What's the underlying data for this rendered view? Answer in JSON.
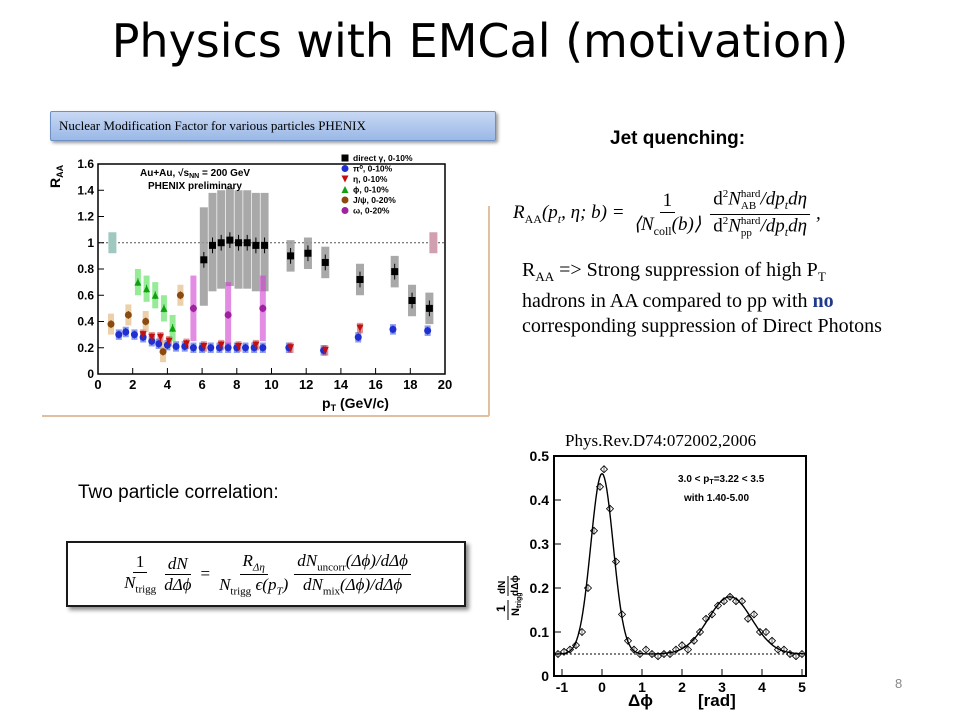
{
  "slide": {
    "title": "Physics with EMCal (motivation)",
    "page_number": "8"
  },
  "left_panel": {
    "banner": "Nuclear Modification Factor for various particles  PHENIX",
    "two_particle_label": "Two particle correlation:"
  },
  "right_panel": {
    "jet_quenching_label": "Jet quenching:",
    "raa_formula": {
      "lhs": "R",
      "lhs_sub": "AA",
      "lhs_args": "(p",
      "lhs_args_sub": "t",
      "lhs_args_rest": ", η; b) =",
      "one": "1",
      "ncoll": "⟨N",
      "ncoll_sub": "coll",
      "ncoll_rest": "(b)⟩",
      "num_d2": "d",
      "num_sup": "2",
      "num_N": "N",
      "num_N_sup": "hard",
      "num_N_sub": "AB",
      "num_rest": "/dp",
      "num_rest_sub": "t",
      "num_rest2": "dη",
      "den_N_sup": "hard",
      "den_N_sub": "pp",
      "trailing": ","
    },
    "description": {
      "p1": "R",
      "p1_sub": "AA",
      "p2": " => Strong suppression of high P",
      "p2_sub": "T",
      "p3": " hadrons in AA compared to pp with ",
      "no": "no",
      "p4": " corresponding suppression of Direct Photons"
    },
    "reference": "Phys.Rev.D74:072002,2006"
  },
  "corr_formula": {
    "one": "1",
    "dN": "dN",
    "N": "N",
    "trigg": "trigg",
    "ddphi": "dΔϕ",
    "R": "R",
    "R_sub": "Δη",
    "eps": " ϵ(p",
    "eps_sub": "T",
    "eps_rest": ")",
    "dN_uncorr": "dN",
    "uncorr_sub": "uncorr",
    "uncorr_rest": "(Δϕ)/dΔϕ",
    "dN_mix": "dN",
    "mix_sub": "mix",
    "mix_rest": "(Δϕ)/dΔϕ",
    "eq": "="
  },
  "raa_chart_data": {
    "type": "scatter",
    "title": "",
    "annotation": [
      "Au+Au, √s",
      "NN",
      " = 200 GeV",
      "PHENIX preliminary"
    ],
    "xlabel": "p",
    "xlabel_sub": "T",
    "xlabel_rest": " (GeV/c)",
    "ylabel": "R",
    "ylabel_sub": "AA",
    "xlim": [
      0,
      20
    ],
    "ylim": [
      0,
      1.6
    ],
    "x_ticks": [
      "0",
      "2",
      "4",
      "6",
      "8",
      "10",
      "12",
      "14",
      "16",
      "18",
      "20"
    ],
    "y_ticks": [
      "0",
      "0.2",
      "0.4",
      "0.6",
      "0.8",
      "1",
      "1.2",
      "1.4",
      "1.6"
    ],
    "y_tick_values": [
      0,
      0.2,
      0.4,
      0.6,
      0.8,
      1,
      1.2,
      1.4,
      1.6
    ],
    "reference_line": 1,
    "legend_position": "top-right",
    "series": [
      {
        "name": "direct γ, 0-10%",
        "marker": "square",
        "color": "#000000",
        "band_color": "#9a9a9a",
        "points": [
          [
            6.1,
            0.87
          ],
          [
            6.6,
            0.98
          ],
          [
            7.1,
            1.0
          ],
          [
            7.6,
            1.02
          ],
          [
            8.1,
            1.0
          ],
          [
            8.6,
            1.0
          ],
          [
            9.1,
            0.98
          ],
          [
            9.6,
            0.98
          ],
          [
            11.1,
            0.9
          ],
          [
            12.1,
            0.92
          ],
          [
            13.1,
            0.85
          ],
          [
            15.1,
            0.72
          ],
          [
            17.1,
            0.78
          ],
          [
            18.1,
            0.56
          ],
          [
            19.1,
            0.5
          ]
        ]
      },
      {
        "name": "π⁰, 0-10%",
        "marker": "circle",
        "color": "#1f2fd0",
        "band_color": "#3d5be0",
        "points": [
          [
            1.2,
            0.3
          ],
          [
            1.6,
            0.32
          ],
          [
            2.1,
            0.3
          ],
          [
            2.6,
            0.28
          ],
          [
            3.1,
            0.25
          ],
          [
            3.5,
            0.23
          ],
          [
            4.0,
            0.22
          ],
          [
            4.5,
            0.21
          ],
          [
            5.0,
            0.21
          ],
          [
            5.5,
            0.2
          ],
          [
            6.0,
            0.2
          ],
          [
            6.5,
            0.2
          ],
          [
            7.0,
            0.2
          ],
          [
            7.5,
            0.2
          ],
          [
            8.0,
            0.2
          ],
          [
            8.5,
            0.2
          ],
          [
            9.0,
            0.2
          ],
          [
            9.5,
            0.2
          ],
          [
            11.0,
            0.2
          ],
          [
            13.0,
            0.18
          ],
          [
            15.0,
            0.28
          ],
          [
            17.0,
            0.34
          ],
          [
            19.0,
            0.33
          ]
        ]
      },
      {
        "name": "η, 0-10%",
        "marker": "triangle-down",
        "color": "#c01010",
        "band_color": "#d05050",
        "points": [
          [
            2.6,
            0.3
          ],
          [
            3.1,
            0.28
          ],
          [
            3.6,
            0.28
          ],
          [
            4.1,
            0.25
          ],
          [
            5.1,
            0.23
          ],
          [
            6.1,
            0.21
          ],
          [
            7.1,
            0.22
          ],
          [
            8.1,
            0.21
          ],
          [
            9.1,
            0.22
          ],
          [
            11.1,
            0.2
          ],
          [
            13.1,
            0.18
          ],
          [
            15.1,
            0.35
          ]
        ]
      },
      {
        "name": "ϕ, 0-10%",
        "marker": "triangle-up",
        "color": "#10a010",
        "band_color": "#50e050",
        "points": [
          [
            2.3,
            0.7
          ],
          [
            2.8,
            0.65
          ],
          [
            3.3,
            0.6
          ],
          [
            3.8,
            0.5
          ],
          [
            4.3,
            0.35
          ]
        ]
      },
      {
        "name": "J/ψ, 0-20%",
        "marker": "circle",
        "color": "#8a4a10",
        "band_color": "#e0b070",
        "points": [
          [
            0.75,
            0.38
          ],
          [
            1.75,
            0.45
          ],
          [
            2.75,
            0.4
          ],
          [
            3.75,
            0.17
          ],
          [
            4.75,
            0.6
          ]
        ]
      },
      {
        "name": "ω, 0-20%",
        "marker": "circle",
        "color": "#a020a0",
        "band_color": "#d040d0",
        "points": [
          [
            5.5,
            0.5
          ],
          [
            7.5,
            0.45
          ],
          [
            9.5,
            0.5
          ]
        ]
      }
    ]
  },
  "corr_chart_data": {
    "type": "scatter",
    "title": "",
    "annotation_line1_a": "3.0 < p",
    "annotation_line1_sub": "T",
    "annotation_line1_b": "=3.22 < 3.5",
    "annotation_line2": "with 1.40-5.00",
    "xlabel": "Δϕ",
    "xlabel_unit": "[rad]",
    "ylabel": "1",
    "ylabel_frac_num": "dN",
    "ylabel_frac_den": "dΔϕ",
    "ylabel_den": "N",
    "ylabel_den_sub": "trigg",
    "xlim": [
      -1.2,
      5.1
    ],
    "ylim": [
      0,
      0.5
    ],
    "x_ticks": [
      "-1",
      "0",
      "1",
      "2",
      "3",
      "4",
      "5"
    ],
    "x_tick_values": [
      -1,
      0,
      1,
      2,
      3,
      4,
      5
    ],
    "y_ticks": [
      "0",
      "0.1",
      "0.2",
      "0.3",
      "0.4",
      "0.5"
    ],
    "y_tick_values": [
      0,
      0.1,
      0.2,
      0.3,
      0.4,
      0.5
    ],
    "baseline": 0.05,
    "points": [
      [
        -1.1,
        0.05
      ],
      [
        -0.95,
        0.055
      ],
      [
        -0.8,
        0.06
      ],
      [
        -0.65,
        0.07
      ],
      [
        -0.5,
        0.1
      ],
      [
        -0.35,
        0.2
      ],
      [
        -0.2,
        0.33
      ],
      [
        -0.05,
        0.43
      ],
      [
        0.05,
        0.47
      ],
      [
        0.2,
        0.38
      ],
      [
        0.35,
        0.26
      ],
      [
        0.5,
        0.14
      ],
      [
        0.65,
        0.08
      ],
      [
        0.8,
        0.06
      ],
      [
        0.95,
        0.05
      ],
      [
        1.1,
        0.06
      ],
      [
        1.25,
        0.05
      ],
      [
        1.4,
        0.045
      ],
      [
        1.55,
        0.05
      ],
      [
        1.7,
        0.05
      ],
      [
        1.85,
        0.06
      ],
      [
        2.0,
        0.07
      ],
      [
        2.15,
        0.06
      ],
      [
        2.3,
        0.08
      ],
      [
        2.45,
        0.1
      ],
      [
        2.6,
        0.13
      ],
      [
        2.75,
        0.14
      ],
      [
        2.9,
        0.16
      ],
      [
        3.05,
        0.17
      ],
      [
        3.2,
        0.18
      ],
      [
        3.35,
        0.17
      ],
      [
        3.5,
        0.17
      ],
      [
        3.65,
        0.13
      ],
      [
        3.8,
        0.14
      ],
      [
        3.95,
        0.1
      ],
      [
        4.1,
        0.1
      ],
      [
        4.25,
        0.08
      ],
      [
        4.4,
        0.06
      ],
      [
        4.55,
        0.06
      ],
      [
        4.7,
        0.05
      ],
      [
        4.85,
        0.045
      ],
      [
        5.0,
        0.05
      ]
    ]
  }
}
